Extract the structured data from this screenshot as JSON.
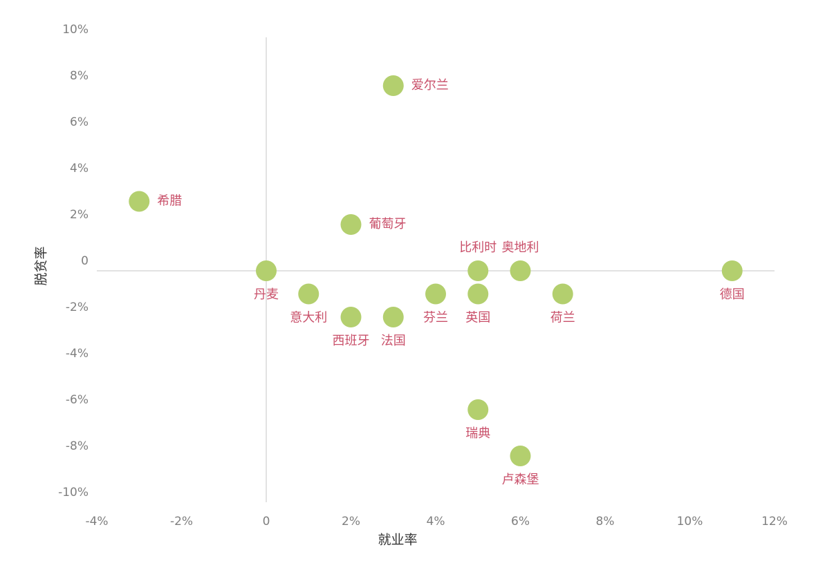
{
  "chart_data": {
    "type": "scatter",
    "x_label": "就业率",
    "y_label": "脱贫率",
    "xlim": [
      -4,
      12
    ],
    "xticks": [
      {
        "value": -4,
        "label": "-4%"
      },
      {
        "value": -2,
        "label": "-2%"
      },
      0,
      {
        "value": 2,
        "label": "2%"
      },
      {
        "value": 4,
        "label": "4%"
      },
      {
        "value": 6,
        "label": "6%"
      },
      {
        "value": 8,
        "label": "8%"
      },
      {
        "value": 10,
        "label": "10%"
      },
      {
        "value": 12,
        "label": "12%"
      }
    ],
    "ylim": [
      -10,
      10
    ],
    "yticks": [
      {
        "value": 10,
        "label": "10%"
      },
      {
        "value": 8,
        "label": "8%"
      },
      {
        "value": 6,
        "label": "6%"
      },
      {
        "value": 4,
        "label": "4%"
      },
      {
        "value": 2,
        "label": "2%"
      },
      0,
      {
        "value": -2,
        "label": "-2%"
      },
      {
        "value": -4,
        "label": "-4%"
      },
      {
        "value": -6,
        "label": "-6%"
      },
      {
        "value": -8,
        "label": "-8%"
      },
      {
        "value": -10,
        "label": "-10%"
      }
    ],
    "label_color": "#c9506a",
    "series": [
      {
        "color": "#b3cf6e",
        "labels": [
          "爱尔兰",
          "希腊",
          "葡萄牙",
          "丹麦",
          "比利时",
          "奥地利",
          "德国",
          "意大利",
          "芬兰",
          "英国",
          "荷兰",
          "西班牙",
          "法国",
          "瑞典",
          "卢森堡"
        ],
        "x": [
          3,
          -3,
          2,
          0,
          5,
          6,
          11,
          1,
          4,
          5,
          7,
          2,
          3,
          5,
          6
        ],
        "values": [
          8,
          3,
          2,
          0,
          0,
          0,
          0,
          -1,
          -1,
          -1,
          -1,
          -2,
          -2,
          -6,
          -8
        ]
      }
    ]
  }
}
